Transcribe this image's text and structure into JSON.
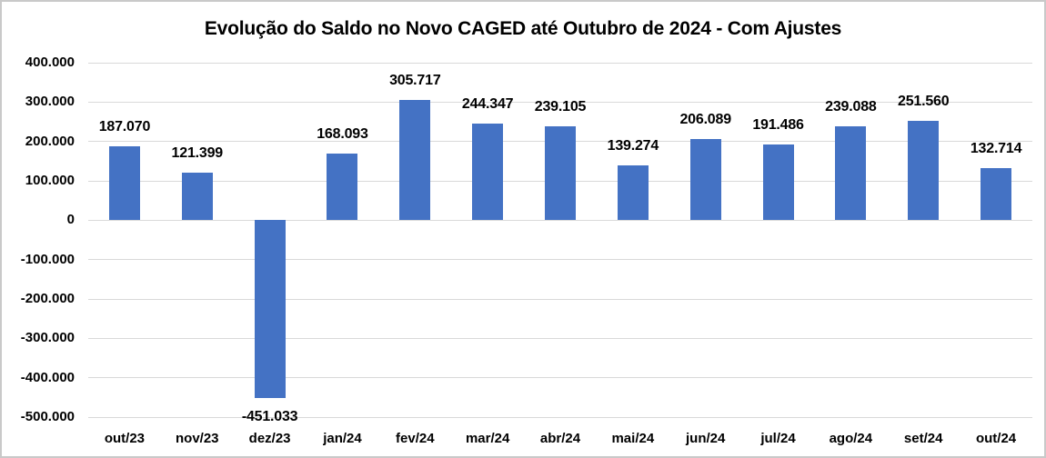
{
  "window": {
    "background_color": "#ffffff",
    "border_color": "#c9c9c9"
  },
  "chart_data": {
    "type": "bar",
    "title": "Evolução do Saldo no Novo CAGED até Outubro de 2024 - Com Ajustes",
    "categories": [
      "out/23",
      "nov/23",
      "dez/23",
      "jan/24",
      "fev/24",
      "mar/24",
      "abr/24",
      "mai/24",
      "jun/24",
      "jul/24",
      "ago/24",
      "set/24",
      "out/24"
    ],
    "values": [
      187070,
      121399,
      -451033,
      168093,
      305717,
      244347,
      239105,
      139274,
      206089,
      191486,
      239088,
      251560,
      132714
    ],
    "value_labels": [
      "187.070",
      "121.399",
      "-451.033",
      "168.093",
      "305.717",
      "244.347",
      "239.105",
      "139.274",
      "206.089",
      "191.486",
      "239.088",
      "251.560",
      "132.714"
    ],
    "xlabel": "",
    "ylabel": "",
    "ylim": [
      -500000,
      400000
    ],
    "ytick_step": 100000,
    "ytick_values": [
      400000,
      300000,
      200000,
      100000,
      0,
      -100000,
      -200000,
      -300000,
      -400000,
      -500000
    ],
    "ytick_labels": [
      "400.000",
      "300.000",
      "200.000",
      "100.000",
      "0",
      "-100.000",
      "-200.000",
      "-300.000",
      "-400.000",
      "-500.000"
    ],
    "grid": true,
    "legend": "none",
    "bar_color": "#4472C4",
    "gridline_color": "#D9D9D9",
    "text_color": "#000000"
  }
}
